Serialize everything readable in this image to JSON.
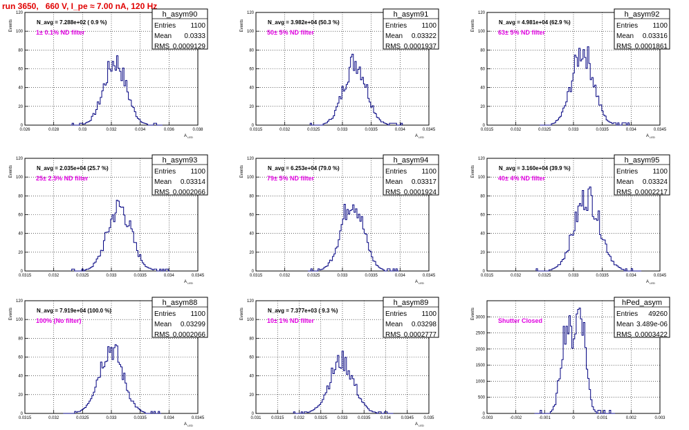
{
  "title": "run 3650,   660 V, I_pe ≈ 7.00 nA, 120 Hz",
  "colors": {
    "title": "#e00000",
    "filter_text": "#e000e0",
    "histogram": "#000080",
    "grid": "#000000"
  },
  "stat_labels": {
    "entries": "Entries",
    "mean": "Mean",
    "rms": "RMS"
  },
  "chart_data": [
    {
      "type": "histogram",
      "name": "h_asym90",
      "n_avg": "N_avg = 7.288e+02 ( 0.9 %)",
      "filter": "1± 0.1% ND filter",
      "entries": "1100",
      "mean": "0.0333",
      "rms": "0.0009129",
      "xlabel": "A_LED",
      "ylabel": "Events",
      "xlim": [
        0.026,
        0.04
      ],
      "ylim": [
        0,
        120
      ],
      "grid": true,
      "xticks": [
        "0.026",
        "0.028",
        "0.03",
        "0.032",
        "0.034",
        "0.036",
        "0.038"
      ],
      "yticks": [
        "0",
        "20",
        "40",
        "60",
        "80",
        "100",
        "120"
      ],
      "bins": {
        "center": 0.0333,
        "sigma": 0.0009,
        "peak": 68,
        "width": 0.00012
      }
    },
    {
      "type": "histogram",
      "name": "h_asym91",
      "n_avg": "N_avg = 3.982e+04 (50.3 %)",
      "filter": "50± 5% ND filter",
      "entries": "1100",
      "mean": "0.03322",
      "rms": "0.0001937",
      "xlabel": "A_LED",
      "ylabel": "Events",
      "xlim": [
        0.0315,
        0.0345
      ],
      "ylim": [
        0,
        120
      ],
      "grid": true,
      "xticks": [
        "0.0315",
        "0.032",
        "0.0325",
        "0.033",
        "0.0335",
        "0.034",
        "0.0345"
      ],
      "yticks": [
        "0",
        "20",
        "40",
        "60",
        "80",
        "100",
        "120"
      ],
      "bins": {
        "center": 0.03322,
        "sigma": 0.000195,
        "peak": 68,
        "width": 2.5e-05
      }
    },
    {
      "type": "histogram",
      "name": "h_asym92",
      "n_avg": "N_avg = 4.981e+04 (62.9 %)",
      "filter": "63± 5% ND filter",
      "entries": "1100",
      "mean": "0.03316",
      "rms": "0.0001861",
      "xlabel": "A_LED",
      "ylabel": "Events",
      "xlim": [
        0.0315,
        0.0345
      ],
      "ylim": [
        0,
        120
      ],
      "grid": true,
      "xticks": [
        "0.0315",
        "0.032",
        "0.0325",
        "0.033",
        "0.0335",
        "0.034",
        "0.0345"
      ],
      "yticks": [
        "0",
        "20",
        "40",
        "60",
        "80",
        "100",
        "120"
      ],
      "bins": {
        "center": 0.03316,
        "sigma": 0.000186,
        "peak": 80,
        "width": 2.5e-05
      }
    },
    {
      "type": "histogram",
      "name": "h_asym93",
      "n_avg": "N_avg = 2.035e+04 (25.7 %)",
      "filter": "25± 2.5% ND filter",
      "entries": "1100",
      "mean": "0.03314",
      "rms": "0.0002066",
      "xlabel": "A_LED",
      "ylabel": "Events",
      "xlim": [
        0.0315,
        0.0345
      ],
      "ylim": [
        0,
        120
      ],
      "grid": true,
      "xticks": [
        "0.0315",
        "0.032",
        "0.0325",
        "0.033",
        "0.0335",
        "0.034",
        "0.0345"
      ],
      "yticks": [
        "0",
        "20",
        "40",
        "60",
        "80",
        "100",
        "120"
      ],
      "bins": {
        "center": 0.03314,
        "sigma": 0.000207,
        "peak": 68,
        "width": 2.5e-05
      }
    },
    {
      "type": "histogram",
      "name": "h_asym94",
      "n_avg": "N_avg = 6.253e+04 (79.0 %)",
      "filter": "79± 5% ND filter",
      "entries": "1100",
      "mean": "0.03317",
      "rms": "0.0001924",
      "xlabel": "A_LED",
      "ylabel": "Events",
      "xlim": [
        0.0315,
        0.0345
      ],
      "ylim": [
        0,
        120
      ],
      "grid": true,
      "xticks": [
        "0.0315",
        "0.032",
        "0.0325",
        "0.033",
        "0.0335",
        "0.034",
        "0.0345"
      ],
      "yticks": [
        "0",
        "20",
        "40",
        "60",
        "80",
        "100",
        "120"
      ],
      "bins": {
        "center": 0.03317,
        "sigma": 0.000192,
        "peak": 76,
        "width": 2.5e-05
      }
    },
    {
      "type": "histogram",
      "name": "h_asym95",
      "n_avg": "N_avg = 3.160e+04 (39.9 %)",
      "filter": "40± 4% ND filter",
      "entries": "1100",
      "mean": "0.03324",
      "rms": "0.0002217",
      "xlabel": "A_LED",
      "ylabel": "Events",
      "xlim": [
        0.0315,
        0.0345
      ],
      "ylim": [
        0,
        120
      ],
      "grid": true,
      "xticks": [
        "0.0315",
        "0.032",
        "0.0325",
        "0.033",
        "0.0335",
        "0.034",
        "0.0345"
      ],
      "yticks": [
        "0",
        "20",
        "40",
        "60",
        "80",
        "100",
        "120"
      ],
      "bins": {
        "center": 0.03324,
        "sigma": 0.000222,
        "peak": 80,
        "width": 2.5e-05
      }
    },
    {
      "type": "histogram",
      "name": "h_asym88",
      "n_avg": "N_avg = 7.919e+04 (100.0 %)",
      "filter": "100% (No filter)",
      "entries": "1100",
      "mean": "0.03299",
      "rms": "0.0002066",
      "xlabel": "A_LED",
      "ylabel": "Events",
      "xlim": [
        0.0315,
        0.0345
      ],
      "ylim": [
        0,
        120
      ],
      "grid": true,
      "xticks": [
        "0.0315",
        "0.032",
        "0.0325",
        "0.033",
        "0.0335",
        "0.034",
        "0.0345"
      ],
      "yticks": [
        "0",
        "20",
        "40",
        "60",
        "80",
        "100",
        "120"
      ],
      "bins": {
        "center": 0.03299,
        "sigma": 0.000207,
        "peak": 70,
        "width": 2.5e-05
      }
    },
    {
      "type": "histogram",
      "name": "h_asym89",
      "n_avg": "N_avg = 7.377e+03 ( 9.3 %)",
      "filter": "10± 1% ND filter",
      "entries": "1100",
      "mean": "0.03298",
      "rms": "0.0002777",
      "xlabel": "A_LED",
      "ylabel": "Events",
      "xlim": [
        0.031,
        0.035
      ],
      "ylim": [
        0,
        120
      ],
      "grid": true,
      "xticks": [
        "0.031",
        "0.0315",
        "0.032",
        "0.0325",
        "0.033",
        "0.0335",
        "0.034",
        "0.0345",
        "0.035"
      ],
      "yticks": [
        "0",
        "20",
        "40",
        "60",
        "80",
        "100",
        "120"
      ],
      "bins": {
        "center": 0.03298,
        "sigma": 0.000278,
        "peak": 56,
        "width": 3.5e-05
      }
    },
    {
      "type": "histogram",
      "name": "hPed_asym",
      "n_avg": "",
      "filter": "Shutter Closed",
      "entries": "49260",
      "mean": "3.489e-06",
      "rms": "0.0003422",
      "xlabel": "",
      "ylabel": "Events",
      "xlim": [
        -0.003,
        0.003
      ],
      "ylim": [
        0,
        3500
      ],
      "grid": true,
      "xticks": [
        "-0.003",
        "-0.002",
        "-0.001",
        "0",
        "0.001",
        "0.002",
        "0.003"
      ],
      "yticks": [
        "0",
        "500",
        "1000",
        "1500",
        "2000",
        "2500",
        "3000"
      ],
      "bins": {
        "center": 3.5e-06,
        "sigma": 0.00034,
        "peak": 3200,
        "width": 5e-05,
        "bimodal": true
      }
    }
  ]
}
